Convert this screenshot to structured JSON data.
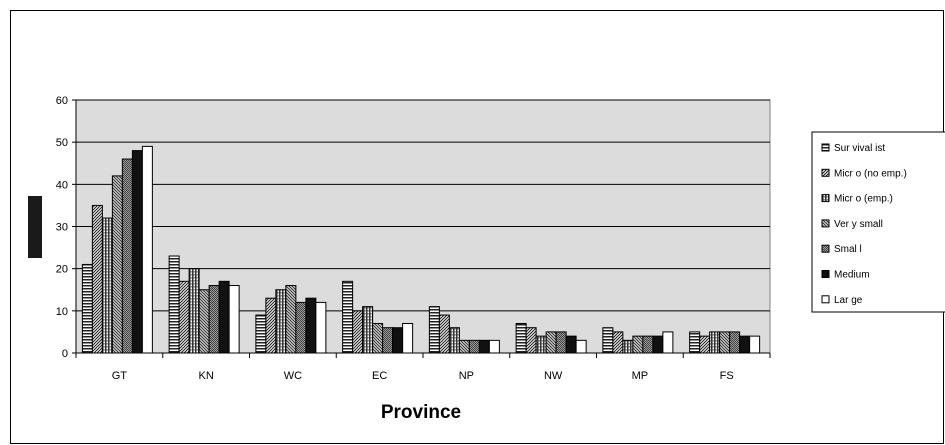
{
  "chart_data": {
    "type": "bar",
    "title": "",
    "xlabel": "Province",
    "ylabel": "",
    "ylim": [
      0,
      60
    ],
    "yticks": [
      0,
      10,
      20,
      30,
      40,
      50,
      60
    ],
    "grid": true,
    "legend_position": "right",
    "categories": [
      "GT",
      "KN",
      "WC",
      "EC",
      "NP",
      "NW",
      "MP",
      "FS"
    ],
    "series": [
      {
        "name": "Sur vival ist",
        "values": [
          21,
          23,
          9,
          17,
          11,
          7,
          6,
          5
        ]
      },
      {
        "name": "Micr o (no emp.)",
        "values": [
          35,
          17,
          13,
          10,
          9,
          6,
          5,
          4
        ]
      },
      {
        "name": "Micr o (emp.)",
        "values": [
          32,
          20,
          15,
          11,
          6,
          4,
          3,
          5
        ]
      },
      {
        "name": "Ver y small",
        "values": [
          42,
          15,
          16,
          7,
          3,
          5,
          4,
          5
        ]
      },
      {
        "name": "Smal l",
        "values": [
          46,
          16,
          12,
          6,
          3,
          5,
          4,
          5
        ]
      },
      {
        "name": "Medium",
        "values": [
          48,
          17,
          13,
          6,
          3,
          4,
          4,
          4
        ]
      },
      {
        "name": "Lar ge",
        "values": [
          49,
          16,
          12,
          7,
          3,
          3,
          5,
          4
        ]
      }
    ],
    "colors": {
      "plot_background": "#dcdcdc",
      "gridline": "#000000",
      "medium": "#111111",
      "large": "#ffffff",
      "hatch_dark": "#222222",
      "hatch_light": "#ffffff"
    }
  }
}
